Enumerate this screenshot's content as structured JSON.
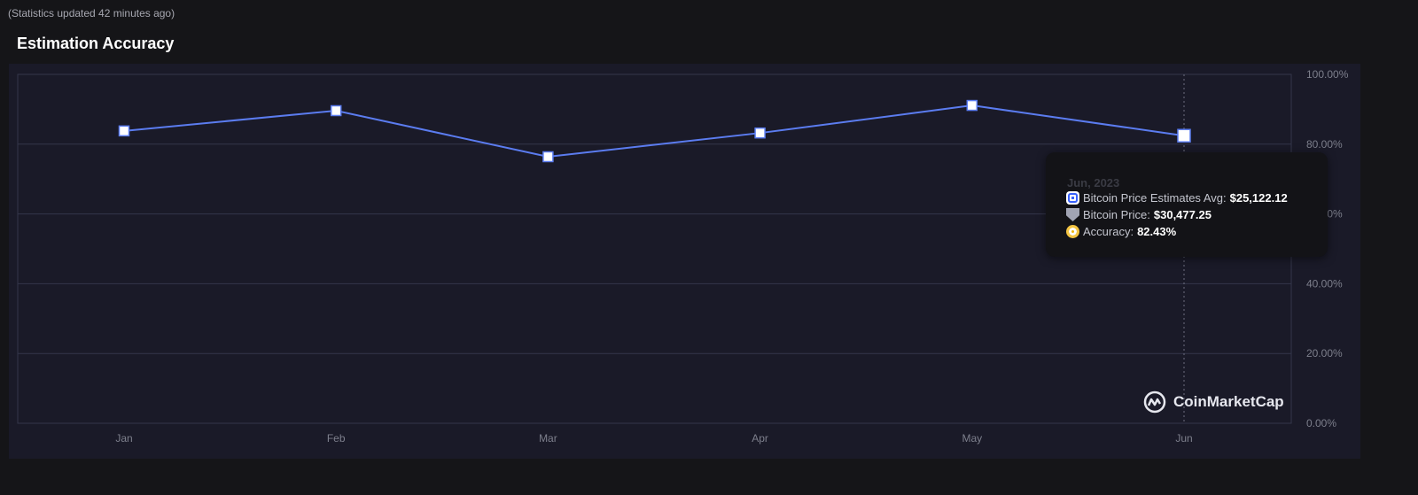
{
  "header": {
    "updated": "(Statistics updated 42 minutes ago)",
    "title": "Estimation Accuracy"
  },
  "chart_data": {
    "type": "line",
    "title": "Estimation Accuracy",
    "categories": [
      "Jan",
      "Feb",
      "Mar",
      "Apr",
      "May",
      "Jun"
    ],
    "series": [
      {
        "values": [
          83.8,
          89.6,
          76.4,
          83.2,
          91.1,
          82.43
        ]
      }
    ],
    "ylim": [
      0,
      100
    ],
    "yticks": [
      "0.00%",
      "20.00%",
      "40.00%",
      "60.00%",
      "80.00%",
      "100.00%"
    ],
    "y_axis_position": "right",
    "grid": true,
    "line_color": "#5b7cf0",
    "highlighted_index": 5
  },
  "tooltip": {
    "date": "Jun, 2023",
    "rows": [
      {
        "label": "Bitcoin Price Estimates Avg:",
        "value": "$25,122.12",
        "icon": "blue-square-icon"
      },
      {
        "label": "Bitcoin Price:",
        "value": "$30,477.25",
        "icon": "gray-shield-icon"
      },
      {
        "label": "Accuracy:",
        "value": "82.43%",
        "icon": "gold-coin-icon"
      }
    ]
  },
  "watermark": "CoinMarketCap"
}
